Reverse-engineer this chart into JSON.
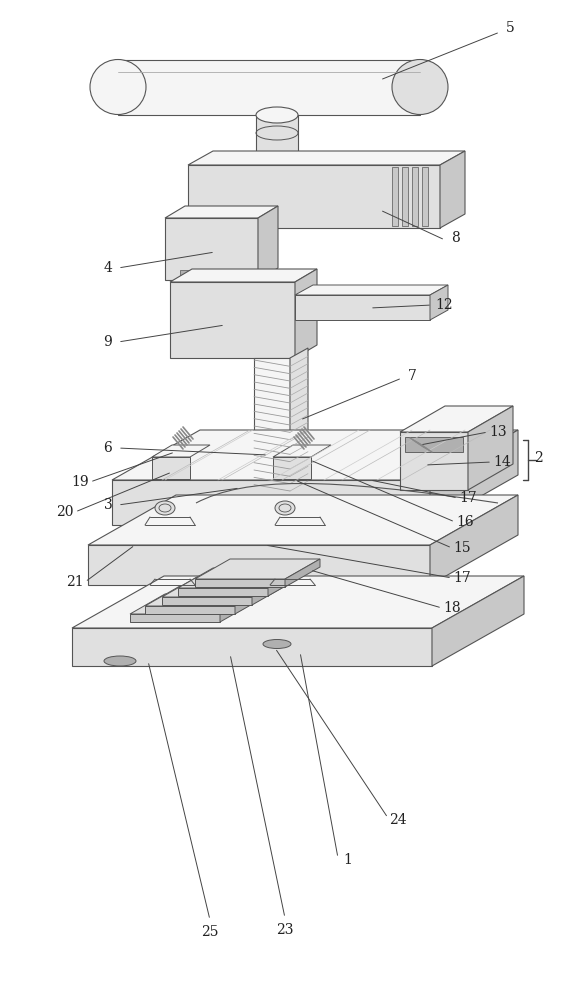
{
  "bg": "#ffffff",
  "lc": "#555555",
  "fc_light": "#f5f5f5",
  "fc_mid": "#e0e0e0",
  "fc_dark": "#c8c8c8",
  "fc_darker": "#b0b0b0",
  "lw": 0.8
}
